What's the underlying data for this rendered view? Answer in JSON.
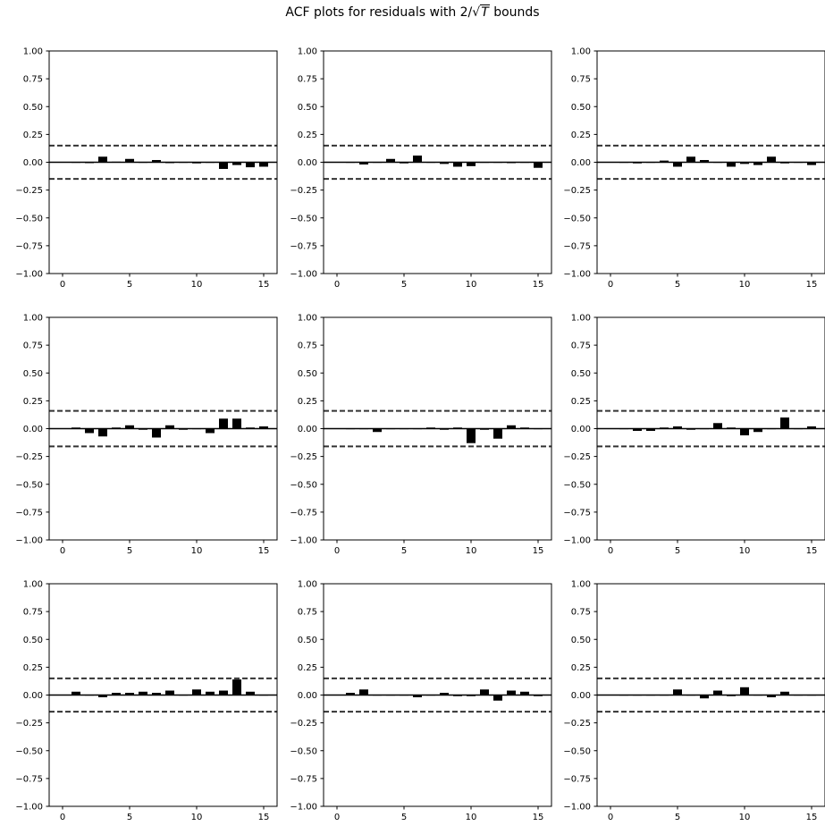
{
  "figure": {
    "title_prefix": "ACF plots for residuals with 2/",
    "title_radicand": "T",
    "title_suffix": " bounds"
  },
  "chart_data": [
    {
      "type": "bar",
      "x": [
        1,
        2,
        3,
        4,
        5,
        6,
        7,
        8,
        9,
        10,
        11,
        12,
        13,
        14,
        15
      ],
      "values": [
        0.003,
        -0.003,
        0.05,
        0.005,
        0.03,
        0.003,
        0.02,
        -0.003,
        0.003,
        -0.01,
        0.003,
        -0.06,
        -0.025,
        -0.045,
        -0.04
      ],
      "bound": 0.15,
      "ylim": [
        -1,
        1
      ],
      "xlim": [
        -1,
        16
      ],
      "yticks": [
        -1.0,
        -0.75,
        -0.5,
        -0.25,
        0.0,
        0.25,
        0.5,
        0.75,
        1.0
      ],
      "xticks": [
        0,
        5,
        10,
        15
      ]
    },
    {
      "type": "bar",
      "x": [
        1,
        2,
        3,
        4,
        5,
        6,
        7,
        8,
        9,
        10,
        11,
        12,
        13,
        14,
        15
      ],
      "values": [
        0.003,
        -0.02,
        0.003,
        0.03,
        -0.01,
        0.06,
        0.003,
        -0.015,
        -0.04,
        -0.035,
        0.003,
        0.003,
        -0.003,
        0.003,
        -0.05
      ],
      "bound": 0.15,
      "ylim": [
        -1,
        1
      ],
      "xlim": [
        -1,
        16
      ],
      "yticks": [
        -1.0,
        -0.75,
        -0.5,
        -0.25,
        0.0,
        0.25,
        0.5,
        0.75,
        1.0
      ],
      "xticks": [
        0,
        5,
        10,
        15
      ]
    },
    {
      "type": "bar",
      "x": [
        1,
        2,
        3,
        4,
        5,
        6,
        7,
        8,
        9,
        10,
        11,
        12,
        13,
        14,
        15
      ],
      "values": [
        0.003,
        -0.01,
        0.003,
        0.015,
        -0.04,
        0.05,
        0.02,
        0.003,
        -0.04,
        -0.015,
        -0.025,
        0.05,
        -0.01,
        0.003,
        -0.025
      ],
      "bound": 0.15,
      "ylim": [
        -1,
        1
      ],
      "xlim": [
        -1,
        16
      ],
      "yticks": [
        -1.0,
        -0.75,
        -0.5,
        -0.25,
        0.0,
        0.25,
        0.5,
        0.75,
        1.0
      ],
      "xticks": [
        0,
        5,
        10,
        15
      ]
    },
    {
      "type": "bar",
      "x": [
        1,
        2,
        3,
        4,
        5,
        6,
        7,
        8,
        9,
        10,
        11,
        12,
        13,
        14,
        15
      ],
      "values": [
        0.01,
        -0.04,
        -0.07,
        0.01,
        0.03,
        -0.01,
        -0.08,
        0.03,
        -0.01,
        0.003,
        -0.04,
        0.09,
        0.09,
        0.01,
        0.02
      ],
      "bound": 0.16,
      "ylim": [
        -1,
        1
      ],
      "xlim": [
        -1,
        16
      ],
      "yticks": [
        -1.0,
        -0.75,
        -0.5,
        -0.25,
        0.0,
        0.25,
        0.5,
        0.75,
        1.0
      ],
      "xticks": [
        0,
        5,
        10,
        15
      ]
    },
    {
      "type": "bar",
      "x": [
        1,
        2,
        3,
        4,
        5,
        6,
        7,
        8,
        9,
        10,
        11,
        12,
        13,
        14,
        15
      ],
      "values": [
        0.003,
        0.003,
        -0.03,
        0.003,
        0.003,
        0.003,
        0.01,
        -0.01,
        0.01,
        -0.13,
        -0.01,
        -0.09,
        0.03,
        0.01,
        0.003
      ],
      "bound": 0.16,
      "ylim": [
        -1,
        1
      ],
      "xlim": [
        -1,
        16
      ],
      "yticks": [
        -1.0,
        -0.75,
        -0.5,
        -0.25,
        0.0,
        0.25,
        0.5,
        0.75,
        1.0
      ],
      "xticks": [
        0,
        5,
        10,
        15
      ]
    },
    {
      "type": "bar",
      "x": [
        1,
        2,
        3,
        4,
        5,
        6,
        7,
        8,
        9,
        10,
        11,
        12,
        13,
        14,
        15
      ],
      "values": [
        0.003,
        -0.02,
        -0.02,
        0.01,
        0.02,
        -0.01,
        0.003,
        0.05,
        0.01,
        -0.06,
        -0.03,
        0.003,
        0.1,
        0.003,
        0.02
      ],
      "bound": 0.16,
      "ylim": [
        -1,
        1
      ],
      "xlim": [
        -1,
        16
      ],
      "yticks": [
        -1.0,
        -0.75,
        -0.5,
        -0.25,
        0.0,
        0.25,
        0.5,
        0.75,
        1.0
      ],
      "xticks": [
        0,
        5,
        10,
        15
      ]
    },
    {
      "type": "bar",
      "x": [
        1,
        2,
        3,
        4,
        5,
        6,
        7,
        8,
        9,
        10,
        11,
        12,
        13,
        14,
        15
      ],
      "values": [
        0.03,
        0.003,
        -0.02,
        0.02,
        0.02,
        0.03,
        0.02,
        0.04,
        0.003,
        0.05,
        0.03,
        0.04,
        0.14,
        0.03,
        0.003
      ],
      "bound": 0.15,
      "ylim": [
        -1,
        1
      ],
      "xlim": [
        -1,
        16
      ],
      "yticks": [
        -1.0,
        -0.75,
        -0.5,
        -0.25,
        0.0,
        0.25,
        0.5,
        0.75,
        1.0
      ],
      "xticks": [
        0,
        5,
        10,
        15
      ]
    },
    {
      "type": "bar",
      "x": [
        1,
        2,
        3,
        4,
        5,
        6,
        7,
        8,
        9,
        10,
        11,
        12,
        13,
        14,
        15
      ],
      "values": [
        0.02,
        0.05,
        0.003,
        0.003,
        0.003,
        -0.02,
        0.003,
        0.02,
        -0.01,
        -0.01,
        0.05,
        -0.05,
        0.04,
        0.03,
        -0.01
      ],
      "bound": 0.15,
      "ylim": [
        -1,
        1
      ],
      "xlim": [
        -1,
        16
      ],
      "yticks": [
        -1.0,
        -0.75,
        -0.5,
        -0.25,
        0.0,
        0.25,
        0.5,
        0.75,
        1.0
      ],
      "xticks": [
        0,
        5,
        10,
        15
      ]
    },
    {
      "type": "bar",
      "x": [
        1,
        2,
        3,
        4,
        5,
        6,
        7,
        8,
        9,
        10,
        11,
        12,
        13,
        14,
        15
      ],
      "values": [
        0.003,
        0.003,
        0.003,
        0.003,
        0.05,
        0.003,
        -0.03,
        0.04,
        -0.01,
        0.07,
        0.003,
        -0.02,
        0.03,
        0.003,
        0.003
      ],
      "bound": 0.15,
      "ylim": [
        -1,
        1
      ],
      "xlim": [
        -1,
        16
      ],
      "yticks": [
        -1.0,
        -0.75,
        -0.5,
        -0.25,
        0.0,
        0.25,
        0.5,
        0.75,
        1.0
      ],
      "xticks": [
        0,
        5,
        10,
        15
      ]
    }
  ]
}
